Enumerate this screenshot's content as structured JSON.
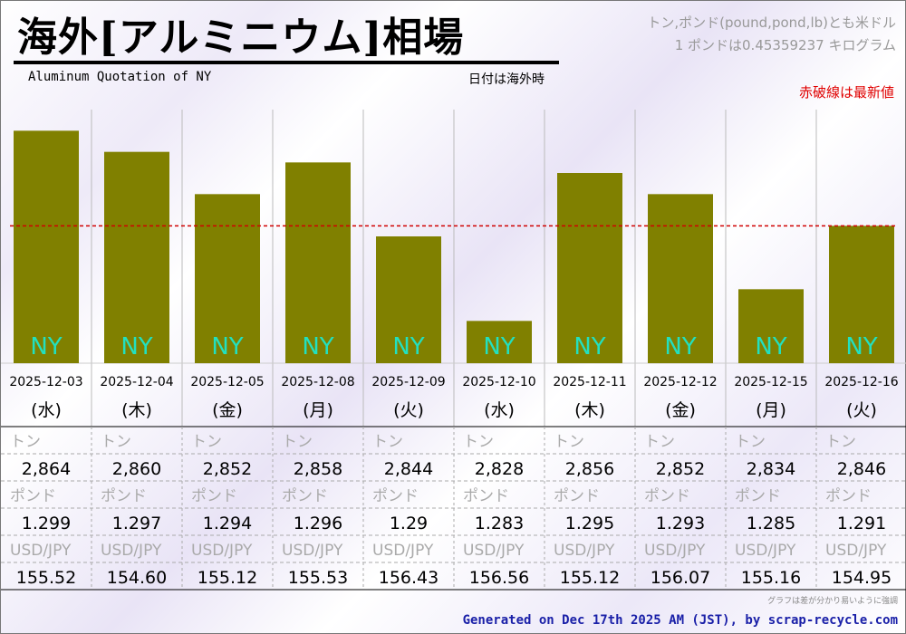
{
  "header": {
    "title": "海外[アルミニウム]相場",
    "subtitle": "Aluminum Quotation of NY",
    "date_note": "日付は海外時",
    "unit_note_1": "トン,ポンド(pound,pond,lb)とも米ドル",
    "unit_note_2": "1 ポンドは0.45359237 キログラム",
    "red_line_note": "赤破線は最新値"
  },
  "chart_data": {
    "type": "bar",
    "title": "海外[アルミニウム]相場",
    "categories": [
      "2025-12-03",
      "2025-12-04",
      "2025-12-05",
      "2025-12-08",
      "2025-12-09",
      "2025-12-10",
      "2025-12-11",
      "2025-12-12",
      "2025-12-15",
      "2025-12-16"
    ],
    "weekdays": [
      "(水)",
      "(木)",
      "(金)",
      "(月)",
      "(火)",
      "(水)",
      "(木)",
      "(金)",
      "(月)",
      "(火)"
    ],
    "bar_label": "NY",
    "series": [
      {
        "name": "トン",
        "values": [
          2864,
          2860,
          2852,
          2858,
          2844,
          2828,
          2856,
          2852,
          2834,
          2846
        ],
        "display": [
          "2,864",
          "2,860",
          "2,852",
          "2,858",
          "2,844",
          "2,828",
          "2,856",
          "2,852",
          "2,834",
          "2,846"
        ]
      },
      {
        "name": "ポンド",
        "values": [
          1.299,
          1.297,
          1.294,
          1.296,
          1.29,
          1.283,
          1.295,
          1.293,
          1.285,
          1.291
        ],
        "display": [
          "1.299",
          "1.297",
          "1.294",
          "1.296",
          "1.29",
          "1.283",
          "1.295",
          "1.293",
          "1.285",
          "1.291"
        ]
      },
      {
        "name": "USD/JPY",
        "values": [
          155.52,
          154.6,
          155.12,
          155.53,
          156.43,
          156.56,
          155.12,
          156.07,
          155.16,
          154.95
        ],
        "display": [
          "155.52",
          "154.60",
          "155.12",
          "155.53",
          "156.43",
          "156.56",
          "155.12",
          "156.07",
          "155.16",
          "154.95"
        ]
      }
    ],
    "ylim": [
      2820,
      2868
    ],
    "latest_value": 2846,
    "latest_line_style": "red dashed",
    "bar_color": "#808000",
    "label_color": "#22e0c0",
    "latest_line_color": "#d00000"
  },
  "footer": {
    "note": "グラフは差が分かり易いように強調",
    "credit": "Generated on Dec 17th 2025 AM (JST), by scrap-recycle.com"
  }
}
